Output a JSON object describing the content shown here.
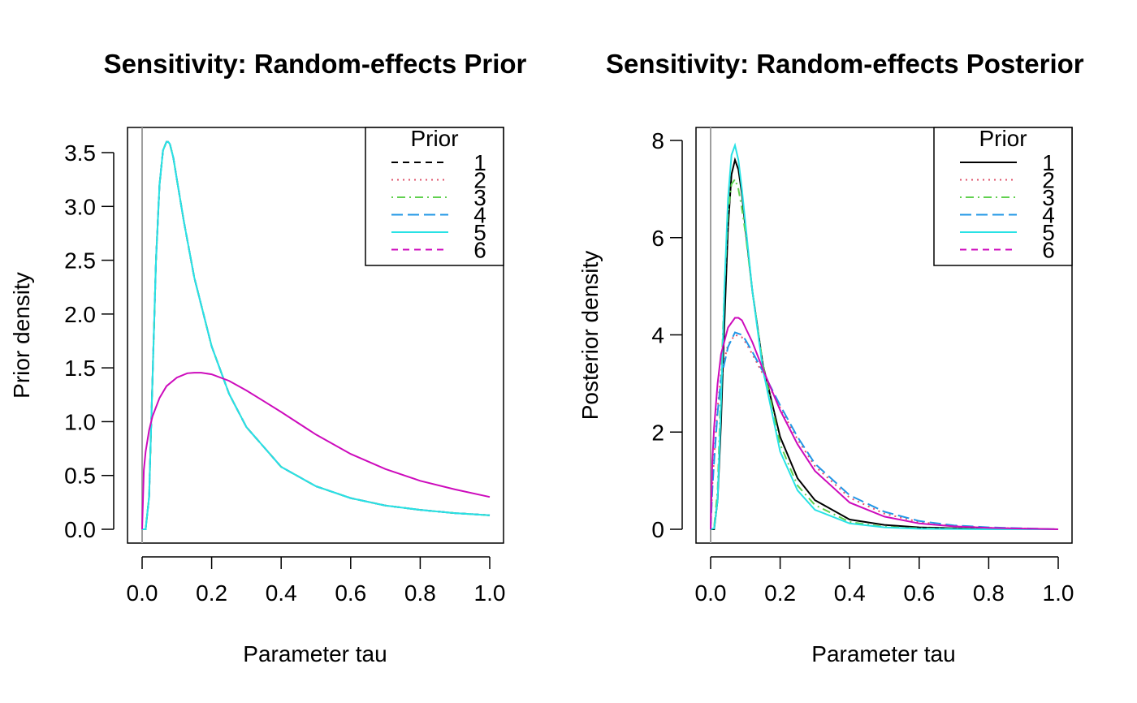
{
  "chart_data": [
    {
      "type": "line",
      "title": "Sensitivity: Random-effects Prior",
      "xlabel": "Parameter tau",
      "ylabel": "Prior density",
      "xlim": [
        0,
        1
      ],
      "ylim": [
        0,
        3.6
      ],
      "xticks": [
        "0.0",
        "0.2",
        "0.4",
        "0.6",
        "0.8",
        "1.0"
      ],
      "yticks": [
        "0.0",
        "0.5",
        "1.0",
        "1.5",
        "2.0",
        "2.5",
        "3.0",
        "3.5"
      ],
      "legend": {
        "title": "Prior",
        "position": "top-right"
      },
      "series": [
        {
          "name": "1",
          "color": "#000000",
          "dash": "dashed",
          "x": [
            0,
            0.01,
            0.02,
            0.03,
            0.04,
            0.05,
            0.06,
            0.07,
            0.075,
            0.08,
            0.09,
            0.1,
            0.12,
            0.15,
            0.2,
            0.25,
            0.3,
            0.4,
            0.5,
            0.6,
            0.7,
            0.8,
            0.9,
            1.0
          ],
          "y": [
            0,
            0,
            0.3,
            1.4,
            2.5,
            3.2,
            3.52,
            3.6,
            3.6,
            3.58,
            3.45,
            3.25,
            2.86,
            2.34,
            1.7,
            1.26,
            0.95,
            0.58,
            0.4,
            0.29,
            0.22,
            0.18,
            0.15,
            0.13
          ]
        },
        {
          "name": "2",
          "color": "#DF536B",
          "dash": "dotted",
          "x": [
            0,
            0.01,
            0.02,
            0.03,
            0.04,
            0.05,
            0.06,
            0.07,
            0.075,
            0.08,
            0.09,
            0.1,
            0.12,
            0.15,
            0.2,
            0.25,
            0.3,
            0.4,
            0.5,
            0.6,
            0.7,
            0.8,
            0.9,
            1.0
          ],
          "y": [
            0,
            0,
            0.3,
            1.4,
            2.5,
            3.2,
            3.52,
            3.6,
            3.6,
            3.58,
            3.45,
            3.25,
            2.86,
            2.34,
            1.7,
            1.26,
            0.95,
            0.58,
            0.4,
            0.29,
            0.22,
            0.18,
            0.15,
            0.13
          ]
        },
        {
          "name": "3",
          "color": "#61D04F",
          "dash": "dotdash",
          "x": [
            0,
            0.01,
            0.02,
            0.03,
            0.04,
            0.05,
            0.06,
            0.07,
            0.075,
            0.08,
            0.09,
            0.1,
            0.12,
            0.15,
            0.2,
            0.25,
            0.3,
            0.4,
            0.5,
            0.6,
            0.7,
            0.8,
            0.9,
            1.0
          ],
          "y": [
            0,
            0,
            0.3,
            1.4,
            2.5,
            3.2,
            3.52,
            3.6,
            3.6,
            3.58,
            3.45,
            3.25,
            2.86,
            2.34,
            1.7,
            1.26,
            0.95,
            0.58,
            0.4,
            0.29,
            0.22,
            0.18,
            0.15,
            0.13
          ]
        },
        {
          "name": "4",
          "color": "#2297E6",
          "dash": "longdash",
          "x": [
            0,
            0.01,
            0.02,
            0.03,
            0.04,
            0.05,
            0.06,
            0.07,
            0.075,
            0.08,
            0.09,
            0.1,
            0.12,
            0.15,
            0.2,
            0.25,
            0.3,
            0.4,
            0.5,
            0.6,
            0.7,
            0.8,
            0.9,
            1.0
          ],
          "y": [
            0,
            0,
            0.3,
            1.4,
            2.5,
            3.2,
            3.52,
            3.6,
            3.6,
            3.58,
            3.45,
            3.25,
            2.86,
            2.34,
            1.7,
            1.26,
            0.95,
            0.58,
            0.4,
            0.29,
            0.22,
            0.18,
            0.15,
            0.13
          ]
        },
        {
          "name": "5",
          "color": "#28E2E5",
          "dash": "solid",
          "x": [
            0,
            0.01,
            0.02,
            0.03,
            0.04,
            0.05,
            0.06,
            0.07,
            0.075,
            0.08,
            0.09,
            0.1,
            0.12,
            0.15,
            0.2,
            0.25,
            0.3,
            0.4,
            0.5,
            0.6,
            0.7,
            0.8,
            0.9,
            1.0
          ],
          "y": [
            0,
            0,
            0.3,
            1.4,
            2.5,
            3.2,
            3.52,
            3.6,
            3.6,
            3.58,
            3.45,
            3.25,
            2.86,
            2.34,
            1.7,
            1.26,
            0.95,
            0.58,
            0.4,
            0.29,
            0.22,
            0.18,
            0.15,
            0.13
          ]
        },
        {
          "name": "6",
          "color": "#CD0BBC",
          "dash": "dashed",
          "x": [
            0,
            0.005,
            0.01,
            0.02,
            0.03,
            0.05,
            0.07,
            0.1,
            0.13,
            0.15,
            0.17,
            0.2,
            0.25,
            0.3,
            0.35,
            0.4,
            0.5,
            0.6,
            0.7,
            0.8,
            0.9,
            1.0
          ],
          "y": [
            0,
            0.55,
            0.72,
            0.92,
            1.05,
            1.22,
            1.33,
            1.41,
            1.45,
            1.455,
            1.455,
            1.44,
            1.38,
            1.29,
            1.19,
            1.09,
            0.88,
            0.7,
            0.56,
            0.45,
            0.37,
            0.3
          ],
          "draw": "solid"
        }
      ]
    },
    {
      "type": "line",
      "title": "Sensitivity: Random-effects Posterior",
      "xlabel": "Parameter tau",
      "ylabel": "Posterior density",
      "xlim": [
        0,
        1
      ],
      "ylim": [
        0,
        8
      ],
      "xticks": [
        "0.0",
        "0.2",
        "0.4",
        "0.6",
        "0.8",
        "1.0"
      ],
      "yticks": [
        "0",
        "2",
        "4",
        "6",
        "8"
      ],
      "legend": {
        "title": "Prior",
        "position": "top-right"
      },
      "series": [
        {
          "name": "1",
          "color": "#000000",
          "dash": "solid",
          "x": [
            0,
            0.01,
            0.02,
            0.03,
            0.04,
            0.05,
            0.06,
            0.07,
            0.08,
            0.09,
            0.1,
            0.12,
            0.15,
            0.2,
            0.25,
            0.3,
            0.4,
            0.5,
            0.6,
            0.7,
            0.8,
            1.0
          ],
          "y": [
            0,
            0,
            0.6,
            2.2,
            4.3,
            6.2,
            7.3,
            7.6,
            7.4,
            6.9,
            6.2,
            4.9,
            3.4,
            1.9,
            1.05,
            0.6,
            0.2,
            0.09,
            0.04,
            0.02,
            0.01,
            0
          ]
        },
        {
          "name": "2",
          "color": "#DF536B",
          "dash": "dotted",
          "x": [
            0,
            0.005,
            0.01,
            0.02,
            0.03,
            0.05,
            0.07,
            0.09,
            0.1,
            0.12,
            0.15,
            0.2,
            0.25,
            0.3,
            0.4,
            0.5,
            0.6,
            0.7,
            0.8,
            1.0
          ],
          "y": [
            0,
            0.9,
            1.5,
            2.5,
            3.2,
            3.8,
            4.0,
            3.95,
            3.85,
            3.6,
            3.2,
            2.5,
            1.85,
            1.3,
            0.65,
            0.32,
            0.15,
            0.07,
            0.03,
            0
          ]
        },
        {
          "name": "3",
          "color": "#61D04F",
          "dash": "dotdash",
          "x": [
            0,
            0.01,
            0.02,
            0.03,
            0.04,
            0.05,
            0.06,
            0.07,
            0.08,
            0.09,
            0.1,
            0.12,
            0.15,
            0.2,
            0.25,
            0.3,
            0.4,
            0.5,
            0.6,
            0.8,
            1.0
          ],
          "y": [
            0,
            0.05,
            0.8,
            3.0,
            5.0,
            6.5,
            7.1,
            7.2,
            7.0,
            6.6,
            6.1,
            4.9,
            3.4,
            1.75,
            0.9,
            0.5,
            0.15,
            0.05,
            0.02,
            0,
            0
          ]
        },
        {
          "name": "4",
          "color": "#2297E6",
          "dash": "longdash",
          "x": [
            0,
            0.005,
            0.01,
            0.02,
            0.03,
            0.05,
            0.07,
            0.09,
            0.1,
            0.12,
            0.15,
            0.2,
            0.25,
            0.3,
            0.4,
            0.5,
            0.6,
            0.7,
            0.8,
            1.0
          ],
          "y": [
            0,
            0.8,
            1.4,
            2.4,
            3.1,
            3.75,
            4.05,
            4.0,
            3.9,
            3.65,
            3.25,
            2.55,
            1.9,
            1.35,
            0.7,
            0.36,
            0.17,
            0.08,
            0.04,
            0
          ]
        },
        {
          "name": "5",
          "color": "#28E2E5",
          "dash": "solid",
          "x": [
            0,
            0.01,
            0.02,
            0.03,
            0.04,
            0.05,
            0.06,
            0.07,
            0.08,
            0.09,
            0.1,
            0.12,
            0.15,
            0.2,
            0.25,
            0.3,
            0.4,
            0.5,
            0.6,
            0.8,
            1.0
          ],
          "y": [
            0,
            0.02,
            0.6,
            2.6,
            5.0,
            6.8,
            7.7,
            7.9,
            7.6,
            7.0,
            6.3,
            4.9,
            3.3,
            1.6,
            0.8,
            0.4,
            0.12,
            0.04,
            0.01,
            0,
            0
          ]
        },
        {
          "name": "6",
          "color": "#CD0BBC",
          "dash": "dashed",
          "x": [
            0,
            0.005,
            0.01,
            0.02,
            0.03,
            0.05,
            0.07,
            0.08,
            0.09,
            0.1,
            0.12,
            0.15,
            0.2,
            0.25,
            0.3,
            0.4,
            0.5,
            0.6,
            0.7,
            0.8,
            1.0
          ],
          "y": [
            0,
            1.4,
            2.1,
            3.0,
            3.6,
            4.15,
            4.35,
            4.35,
            4.3,
            4.15,
            3.85,
            3.3,
            2.45,
            1.75,
            1.2,
            0.55,
            0.26,
            0.12,
            0.06,
            0.03,
            0
          ],
          "draw": "solid"
        }
      ]
    }
  ]
}
